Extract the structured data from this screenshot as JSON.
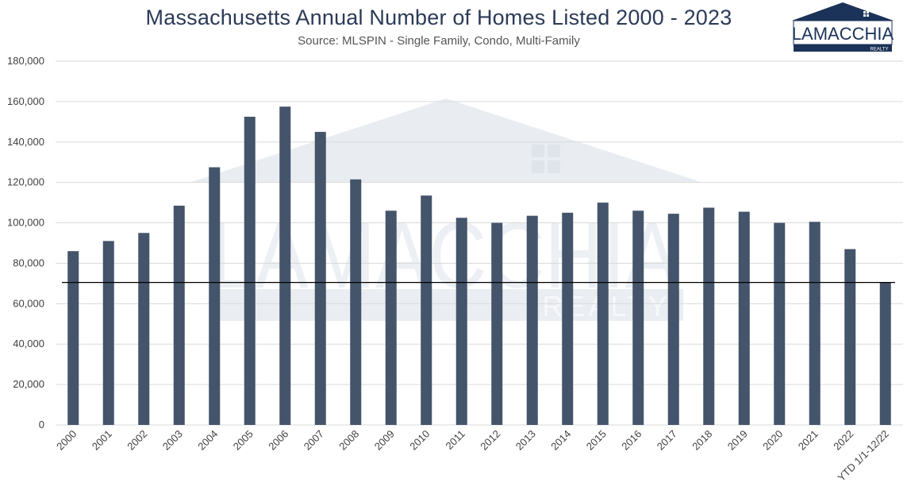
{
  "header": {
    "title": "Massachusetts Annual Number of Homes Listed 2000 - 2023",
    "subtitle": "Source: MLSPIN - Single Family, Condo, Multi-Family"
  },
  "logo": {
    "brand": "LAMACCHIA",
    "tagline": "REALTY",
    "brand_color": "#1b3358"
  },
  "chart_data": {
    "type": "bar",
    "categories": [
      "2000",
      "2001",
      "2002",
      "2003",
      "2004",
      "2005",
      "2006",
      "2007",
      "2008",
      "2009",
      "2010",
      "2011",
      "2012",
      "2013",
      "2014",
      "2015",
      "2016",
      "2017",
      "2018",
      "2019",
      "2020",
      "2021",
      "2022",
      "YTD 1/1-12/22"
    ],
    "values": [
      86000,
      91000,
      95000,
      108500,
      127500,
      152500,
      157500,
      145000,
      121500,
      106000,
      113500,
      102500,
      100000,
      103500,
      105000,
      110000,
      106000,
      104500,
      107500,
      105500,
      100000,
      100500,
      87000,
      70500
    ],
    "title": "Massachusetts Annual Number of Homes Listed 2000 - 2023",
    "xlabel": "",
    "ylabel": "",
    "ylim": [
      0,
      180000
    ],
    "yticks": [
      0,
      20000,
      40000,
      60000,
      80000,
      100000,
      120000,
      140000,
      160000,
      180000
    ],
    "ytick_labels": [
      "0",
      "20,000",
      "40,000",
      "60,000",
      "80,000",
      "100,000",
      "120,000",
      "140,000",
      "160,000",
      "180,000"
    ],
    "reference_line": 70500,
    "grid": true,
    "legend": "none",
    "bar_color": "#44546a",
    "watermark_color": "#e7ebf0"
  }
}
